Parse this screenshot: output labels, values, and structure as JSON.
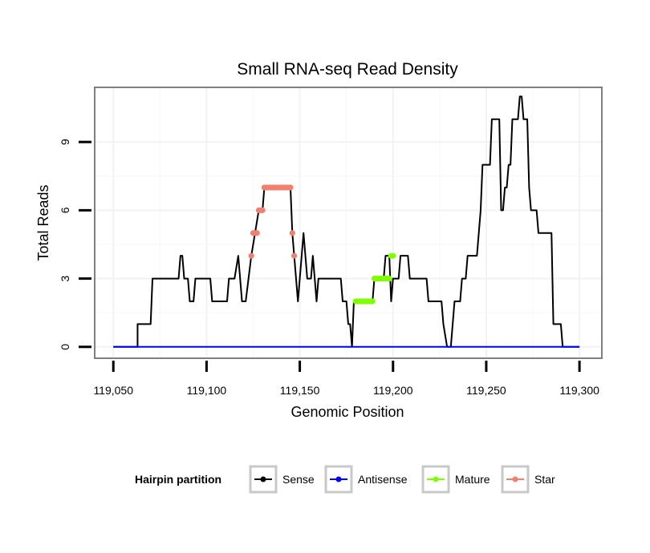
{
  "chart_data": {
    "type": "line",
    "title": "Small RNA-seq Read Density",
    "xlabel": "Genomic Position",
    "ylabel": "Total Reads",
    "xlim": [
      119040,
      119312
    ],
    "ylim": [
      -0.5,
      11.4
    ],
    "xticks": [
      119050,
      119100,
      119150,
      119200,
      119250,
      119300
    ],
    "xtick_labels": [
      "119,050",
      "119,100",
      "119,150",
      "119,200",
      "119,250",
      "119,300"
    ],
    "yticks": [
      0,
      3,
      6,
      9
    ],
    "ytick_labels": [
      "0",
      "3",
      "6",
      "9"
    ],
    "legend_title": "Hairpin partition",
    "legend_position": "bottom",
    "grid": true,
    "series": [
      {
        "name": "Sense",
        "color": "#000000",
        "marker": false,
        "points": [
          [
            119050,
            0
          ],
          [
            119063,
            0
          ],
          [
            119063,
            1
          ],
          [
            119070,
            1
          ],
          [
            119071,
            3
          ],
          [
            119085,
            3
          ],
          [
            119086,
            4
          ],
          [
            119087,
            4
          ],
          [
            119088,
            3
          ],
          [
            119090,
            3
          ],
          [
            119091,
            2
          ],
          [
            119093,
            2
          ],
          [
            119094,
            3
          ],
          [
            119102,
            3
          ],
          [
            119103,
            2
          ],
          [
            119111,
            2
          ],
          [
            119112,
            3
          ],
          [
            119115,
            3
          ],
          [
            119117,
            4
          ],
          [
            119118,
            3
          ],
          [
            119119,
            2
          ],
          [
            119121,
            2
          ],
          [
            119124,
            4
          ],
          [
            119126,
            5
          ],
          [
            119128,
            6
          ],
          [
            119130,
            6
          ],
          [
            119131,
            7
          ],
          [
            119145,
            7
          ],
          [
            119146,
            5
          ],
          [
            119147,
            4
          ],
          [
            119148,
            3
          ],
          [
            119149,
            2
          ],
          [
            119150,
            3
          ],
          [
            119151,
            4
          ],
          [
            119152,
            5
          ],
          [
            119153,
            4
          ],
          [
            119154,
            3
          ],
          [
            119156,
            3
          ],
          [
            119157,
            4
          ],
          [
            119158,
            3
          ],
          [
            119159,
            2
          ],
          [
            119160,
            3
          ],
          [
            119172,
            3
          ],
          [
            119173,
            2
          ],
          [
            119175,
            2
          ],
          [
            119176,
            1
          ],
          [
            119177,
            1
          ],
          [
            119178,
            0
          ],
          [
            119179,
            2
          ],
          [
            119189,
            2
          ],
          [
            119190,
            3
          ],
          [
            119195,
            3
          ],
          [
            119196,
            4
          ],
          [
            119198,
            4
          ],
          [
            119199,
            2
          ],
          [
            119200,
            3
          ],
          [
            119203,
            3
          ],
          [
            119204,
            4
          ],
          [
            119208,
            4
          ],
          [
            119209,
            3
          ],
          [
            119218,
            3
          ],
          [
            119219,
            2
          ],
          [
            119226,
            2
          ],
          [
            119227,
            1
          ],
          [
            119229,
            0
          ],
          [
            119231,
            0
          ],
          [
            119233,
            2
          ],
          [
            119236,
            2
          ],
          [
            119237,
            3
          ],
          [
            119239,
            3
          ],
          [
            119240,
            4
          ],
          [
            119245,
            4
          ],
          [
            119246,
            5
          ],
          [
            119247,
            6
          ],
          [
            119248,
            8
          ],
          [
            119250,
            8
          ],
          [
            119252,
            8
          ],
          [
            119253,
            10
          ],
          [
            119257,
            10
          ],
          [
            119258,
            6
          ],
          [
            119259,
            6
          ],
          [
            119260,
            7
          ],
          [
            119261,
            7
          ],
          [
            119262,
            8
          ],
          [
            119263,
            8
          ],
          [
            119264,
            10
          ],
          [
            119267,
            10
          ],
          [
            119268,
            11
          ],
          [
            119269,
            11
          ],
          [
            119270,
            10
          ],
          [
            119272,
            10
          ],
          [
            119273,
            7
          ],
          [
            119274,
            6
          ],
          [
            119277,
            6
          ],
          [
            119278,
            5
          ],
          [
            119285,
            5
          ],
          [
            119286,
            1
          ],
          [
            119290,
            1
          ],
          [
            119291,
            0
          ],
          [
            119300,
            0
          ]
        ]
      },
      {
        "name": "Antisense",
        "color": "#0000ff",
        "marker": false,
        "points": [
          [
            119050,
            0
          ],
          [
            119300,
            0
          ]
        ]
      },
      {
        "name": "Mature",
        "color": "#7fff00",
        "marker": true,
        "points": [
          [
            119180,
            2
          ],
          [
            119181,
            2
          ],
          [
            119182,
            2
          ],
          [
            119183,
            2
          ],
          [
            119184,
            2
          ],
          [
            119185,
            2
          ],
          [
            119186,
            2
          ],
          [
            119187,
            2
          ],
          [
            119188,
            2
          ],
          [
            119189,
            2
          ],
          [
            119190,
            3
          ],
          [
            119191,
            3
          ],
          [
            119192,
            3
          ],
          [
            119193,
            3
          ],
          [
            119194,
            3
          ],
          [
            119195,
            3
          ],
          [
            119196,
            3
          ],
          [
            119197,
            3
          ],
          [
            119198,
            3
          ],
          [
            119199,
            4
          ],
          [
            119200,
            4
          ]
        ]
      },
      {
        "name": "Star",
        "color": "#f08070",
        "marker": true,
        "points": [
          [
            119124,
            4
          ],
          [
            119125,
            5
          ],
          [
            119126,
            5
          ],
          [
            119127,
            5
          ],
          [
            119128,
            6
          ],
          [
            119129,
            6
          ],
          [
            119130,
            6
          ],
          [
            119131,
            7
          ],
          [
            119132,
            7
          ],
          [
            119133,
            7
          ],
          [
            119134,
            7
          ],
          [
            119135,
            7
          ],
          [
            119136,
            7
          ],
          [
            119137,
            7
          ],
          [
            119138,
            7
          ],
          [
            119139,
            7
          ],
          [
            119140,
            7
          ],
          [
            119141,
            7
          ],
          [
            119142,
            7
          ],
          [
            119143,
            7
          ],
          [
            119144,
            7
          ],
          [
            119145,
            7
          ],
          [
            119146,
            5
          ],
          [
            119147,
            4
          ]
        ]
      }
    ]
  }
}
